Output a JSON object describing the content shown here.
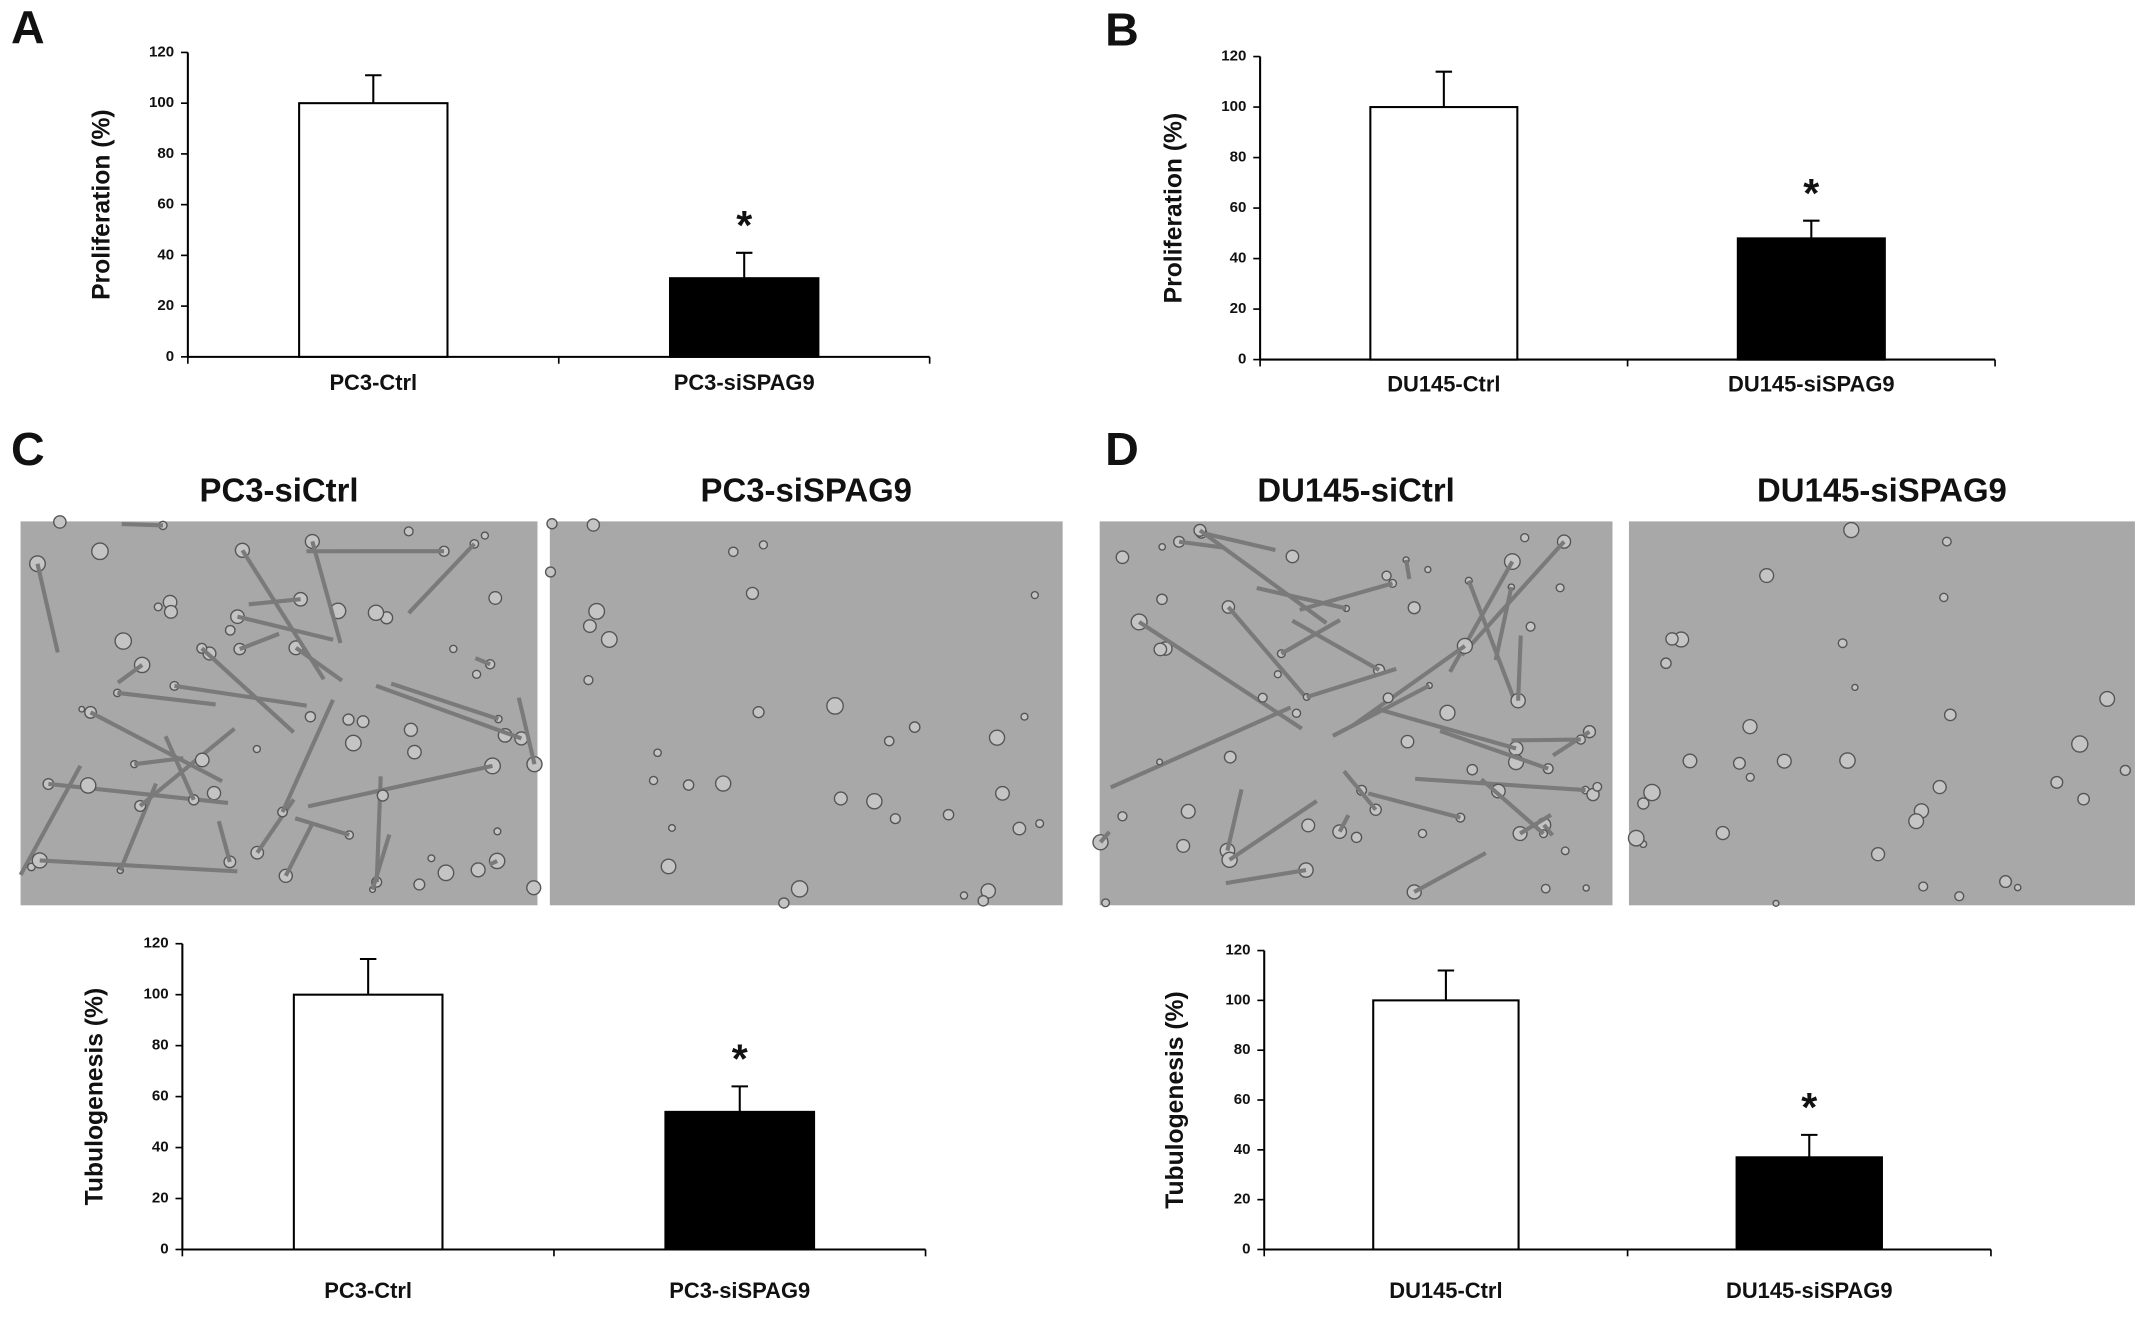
{
  "panel_labels": [
    "A",
    "B",
    "C",
    "D"
  ],
  "micrograph_titles": [
    "PC3-siCtrl",
    "PC3-siSPAG9",
    "DU145-siCtrl",
    "DU145-siSPAG9"
  ],
  "chart_data": [
    {
      "type": "bar",
      "ylabel": "Proliferation (%)",
      "categories": [
        "PC3-Ctrl",
        "PC3-siSPAG9"
      ],
      "values": [
        100,
        31
      ],
      "errors": [
        11,
        10
      ],
      "colors": [
        "#ffffff",
        "#000000"
      ],
      "ylim": [
        0,
        120
      ],
      "yticks": [
        0,
        20,
        40,
        60,
        80,
        100,
        120
      ],
      "annotations": [
        {
          "text": "*",
          "category": "PC3-siSPAG9"
        }
      ]
    },
    {
      "type": "bar",
      "ylabel": "Proliferation (%)",
      "categories": [
        "DU145-Ctrl",
        "DU145-siSPAG9"
      ],
      "values": [
        100,
        48
      ],
      "errors": [
        14,
        7
      ],
      "colors": [
        "#ffffff",
        "#000000"
      ],
      "ylim": [
        0,
        120
      ],
      "yticks": [
        0,
        20,
        40,
        60,
        80,
        100,
        120
      ],
      "annotations": [
        {
          "text": "*",
          "category": "DU145-siSPAG9"
        }
      ]
    },
    {
      "type": "bar",
      "ylabel": "Tubulogenesis (%)",
      "categories": [
        "PC3-Ctrl",
        "PC3-siSPAG9"
      ],
      "values": [
        100,
        54
      ],
      "errors": [
        14,
        10
      ],
      "colors": [
        "#ffffff",
        "#000000"
      ],
      "ylim": [
        0,
        120
      ],
      "yticks": [
        0,
        20,
        40,
        60,
        80,
        100,
        120
      ],
      "annotations": [
        {
          "text": "*",
          "category": "PC3-siSPAG9"
        }
      ]
    },
    {
      "type": "bar",
      "ylabel": "Tubulogenesis (%)",
      "categories": [
        "DU145-Ctrl",
        "DU145-siSPAG9"
      ],
      "values": [
        100,
        37
      ],
      "errors": [
        12,
        9
      ],
      "colors": [
        "#ffffff",
        "#000000"
      ],
      "ylim": [
        0,
        120
      ],
      "yticks": [
        0,
        20,
        40,
        60,
        80,
        100,
        120
      ],
      "annotations": [
        {
          "text": "*",
          "category": "DU145-siSPAG9"
        }
      ]
    }
  ]
}
